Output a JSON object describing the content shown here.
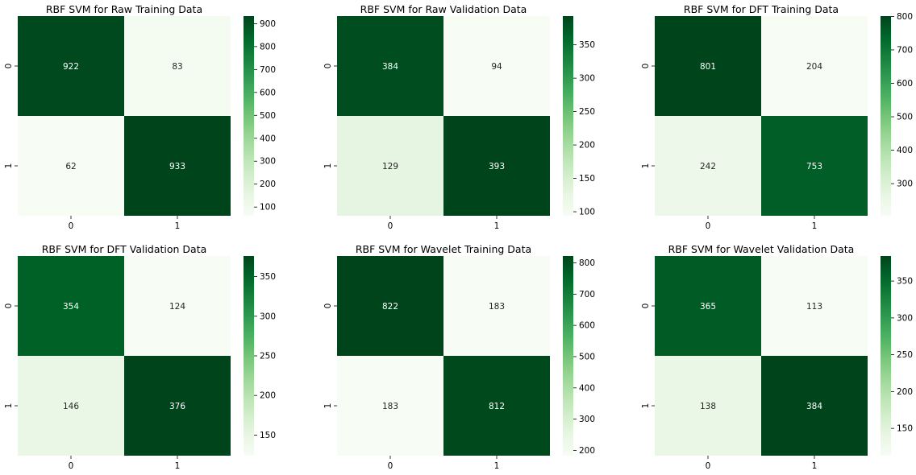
{
  "chart_data": [
    {
      "type": "heatmap",
      "title": "RBF SVM for Raw Training Data",
      "x_tick_labels": [
        "0",
        "1"
      ],
      "y_tick_labels": [
        "0",
        "1"
      ],
      "values": [
        [
          922,
          83
        ],
        [
          62,
          933
        ]
      ],
      "colorbar": {
        "range": [
          62,
          933
        ],
        "ticks": [
          100,
          200,
          300,
          400,
          500,
          600,
          700,
          800,
          900
        ]
      }
    },
    {
      "type": "heatmap",
      "title": "RBF SVM for Raw Validation Data",
      "x_tick_labels": [
        "0",
        "1"
      ],
      "y_tick_labels": [
        "0",
        "1"
      ],
      "values": [
        [
          384,
          94
        ],
        [
          129,
          393
        ]
      ],
      "colorbar": {
        "range": [
          94,
          393
        ],
        "ticks": [
          100,
          150,
          200,
          250,
          300,
          350
        ]
      }
    },
    {
      "type": "heatmap",
      "title": "RBF SVM for DFT Training Data",
      "x_tick_labels": [
        "0",
        "1"
      ],
      "y_tick_labels": [
        "0",
        "1"
      ],
      "values": [
        [
          801,
          204
        ],
        [
          242,
          753
        ]
      ],
      "colorbar": {
        "range": [
          204,
          801
        ],
        "ticks": [
          300,
          400,
          500,
          600,
          700,
          800
        ]
      }
    },
    {
      "type": "heatmap",
      "title": "RBF SVM for DFT Validation Data",
      "x_tick_labels": [
        "0",
        "1"
      ],
      "y_tick_labels": [
        "0",
        "1"
      ],
      "values": [
        [
          354,
          124
        ],
        [
          146,
          376
        ]
      ],
      "colorbar": {
        "range": [
          124,
          376
        ],
        "ticks": [
          150,
          200,
          250,
          300,
          350
        ]
      }
    },
    {
      "type": "heatmap",
      "title": "RBF SVM for Wavelet Training Data",
      "x_tick_labels": [
        "0",
        "1"
      ],
      "y_tick_labels": [
        "0",
        "1"
      ],
      "values": [
        [
          822,
          183
        ],
        [
          183,
          812
        ]
      ],
      "colorbar": {
        "range": [
          183,
          822
        ],
        "ticks": [
          200,
          300,
          400,
          500,
          600,
          700,
          800
        ]
      }
    },
    {
      "type": "heatmap",
      "title": "RBF SVM for Wavelet Validation Data",
      "x_tick_labels": [
        "0",
        "1"
      ],
      "y_tick_labels": [
        "0",
        "1"
      ],
      "values": [
        [
          365,
          113
        ],
        [
          138,
          384
        ]
      ],
      "colorbar": {
        "range": [
          113,
          384
        ],
        "ticks": [
          150,
          200,
          250,
          300,
          350
        ]
      }
    }
  ],
  "colormap": {
    "name": "Greens",
    "low": "#f7fcf5",
    "high": "#00441b"
  }
}
